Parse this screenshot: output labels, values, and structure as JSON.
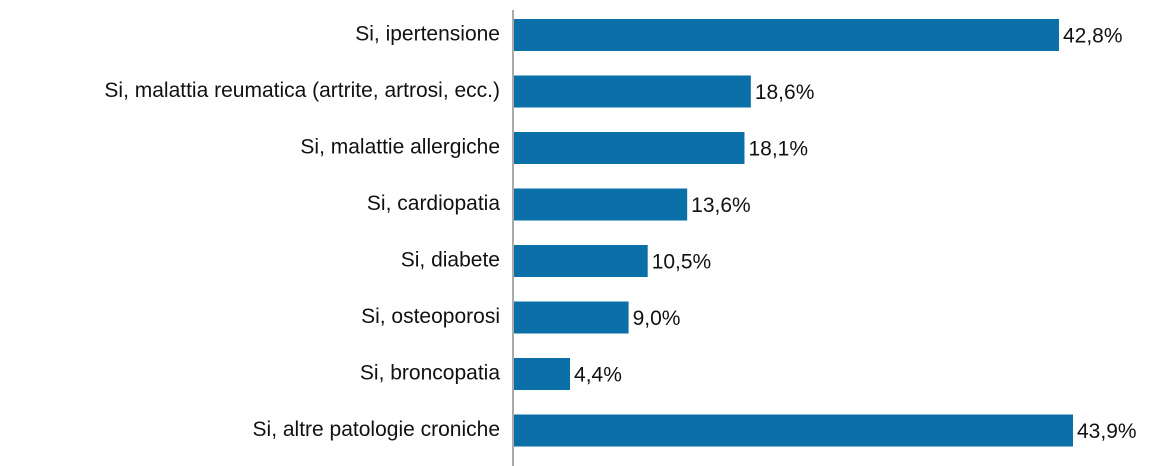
{
  "chart_data": {
    "type": "barh",
    "categories": [
      "Si, ipertensione",
      "Si, malattia reumatica (artrite, artrosi, ecc.)",
      "Si, malattie allergiche",
      "Si, cardiopatia",
      "Si, diabete",
      "Si, osteoporosi",
      "Si, broncopatia",
      "Si, altre patologie croniche"
    ],
    "values": [
      42.8,
      18.6,
      18.1,
      13.6,
      10.5,
      9.0,
      4.4,
      43.9
    ],
    "value_labels": [
      "42,8%",
      "18,6%",
      "18,1%",
      "13,6%",
      "10,5%",
      "9,0%",
      "4,4%",
      "43,9%"
    ],
    "color": "#0b6fa8"
  }
}
